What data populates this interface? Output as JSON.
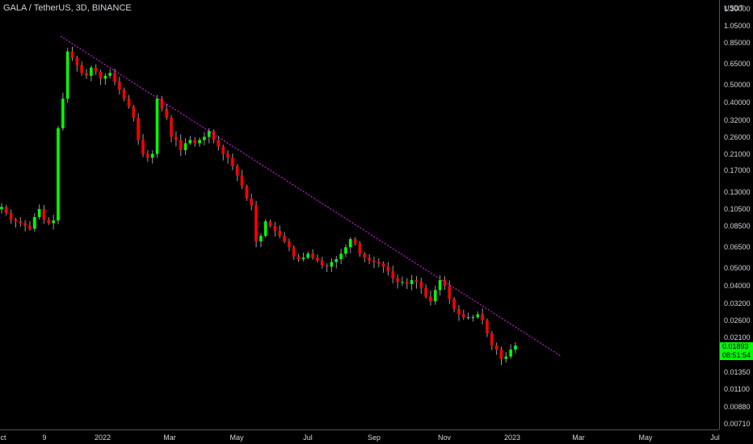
{
  "header": {
    "symbol_title": "GALA / TetherUS, 3D, BINANCE"
  },
  "price_axis": {
    "unit": "USDT",
    "ticks": [
      "1.30000",
      "1.05000",
      "0.85000",
      "0.65000",
      "0.50000",
      "0.40000",
      "0.32000",
      "0.26000",
      "0.21000",
      "0.17000",
      "0.13000",
      "0.10500",
      "0.08500",
      "0.06500",
      "0.05000",
      "0.04000",
      "0.03200",
      "0.02600",
      "0.02100",
      "0.01350",
      "0.01100",
      "0.00880",
      "0.00710"
    ]
  },
  "last_price": {
    "value": "0.01893",
    "countdown": "08:51:54"
  },
  "time_axis": {
    "ticks": [
      "ct",
      "9",
      "2022",
      "Mar",
      "May",
      "Jul",
      "Sep",
      "Nov",
      "2023",
      "Mar",
      "May",
      "Jul"
    ]
  },
  "colors": {
    "background": "#000000",
    "up": "#00ff00",
    "down": "#ff0000",
    "trendline": "#d017e0",
    "text": "#d1d4dc"
  },
  "chart_data": {
    "type": "candlestick",
    "title": "GALA / TetherUS, 3D, BINANCE",
    "scale": "log",
    "ylim": [
      0.0066,
      1.45
    ],
    "x_labels": [
      "ct",
      "9",
      "2022",
      "Mar",
      "May",
      "Jul",
      "Sep",
      "Nov",
      "2023",
      "Mar",
      "May",
      "Jul"
    ],
    "close_series": [
      0.108,
      0.1,
      0.092,
      0.09,
      0.088,
      0.085,
      0.082,
      0.095,
      0.105,
      0.092,
      0.088,
      0.091,
      0.29,
      0.42,
      0.76,
      0.7,
      0.64,
      0.58,
      0.56,
      0.62,
      0.59,
      0.54,
      0.56,
      0.58,
      0.52,
      0.47,
      0.42,
      0.38,
      0.33,
      0.25,
      0.21,
      0.2,
      0.21,
      0.42,
      0.37,
      0.33,
      0.26,
      0.25,
      0.22,
      0.24,
      0.25,
      0.24,
      0.25,
      0.26,
      0.28,
      0.25,
      0.23,
      0.21,
      0.2,
      0.18,
      0.16,
      0.14,
      0.12,
      0.11,
      0.07,
      0.075,
      0.09,
      0.085,
      0.08,
      0.075,
      0.07,
      0.065,
      0.058,
      0.056,
      0.057,
      0.06,
      0.057,
      0.055,
      0.052,
      0.051,
      0.054,
      0.056,
      0.06,
      0.065,
      0.072,
      0.068,
      0.06,
      0.057,
      0.055,
      0.054,
      0.053,
      0.051,
      0.048,
      0.044,
      0.042,
      0.042,
      0.041,
      0.043,
      0.042,
      0.039,
      0.035,
      0.033,
      0.038,
      0.043,
      0.04,
      0.034,
      0.03,
      0.028,
      0.027,
      0.027,
      0.027,
      0.028,
      0.026,
      0.022,
      0.019,
      0.018,
      0.016,
      0.0165,
      0.018,
      0.01893
    ],
    "trendline": {
      "from": {
        "x_label": "9",
        "value": 0.92
      },
      "to": {
        "x_label": "Mar",
        "value": 0.0165
      },
      "style": "dotted"
    },
    "grid": false
  }
}
